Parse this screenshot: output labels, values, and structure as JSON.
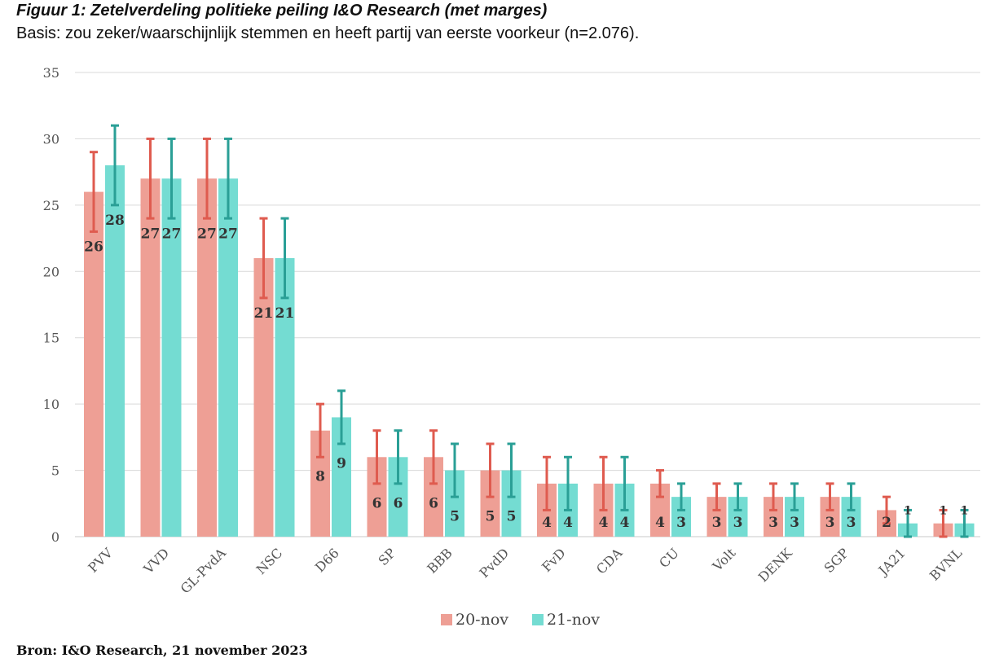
{
  "chart_data": {
    "type": "bar",
    "title": "Figuur 1: Zetelverdeling politieke peiling I&O Research (met marges)",
    "subtitle": "Basis: zou zeker/waarschijnlijk stemmen en heeft partij van eerste voorkeur (n=2.076).",
    "source": "Bron: I&O Research, 21 november 2023",
    "categories": [
      "PVV",
      "VVD",
      "GL-PvdA",
      "NSC",
      "D66",
      "SP",
      "BBB",
      "PvdD",
      "FvD",
      "CDA",
      "CU",
      "Volt",
      "DENK",
      "SGP",
      "JA21",
      "BVNL"
    ],
    "ylim": [
      0,
      35
    ],
    "yticks": [
      0,
      5,
      10,
      15,
      20,
      25,
      30,
      35
    ],
    "grid": true,
    "legend_position": "bottom",
    "series": [
      {
        "name": "20-nov",
        "color": "#ee9f95",
        "errorColor": "#df5b4f",
        "values": [
          26,
          27,
          27,
          21,
          8,
          6,
          6,
          5,
          4,
          4,
          4,
          3,
          3,
          3,
          2,
          1
        ],
        "low": [
          23,
          24,
          24,
          18,
          6,
          4,
          4,
          3,
          2,
          2,
          3,
          2,
          2,
          2,
          1,
          0
        ],
        "high": [
          29,
          30,
          30,
          24,
          10,
          8,
          8,
          7,
          6,
          6,
          5,
          4,
          4,
          4,
          3,
          2
        ]
      },
      {
        "name": "21-nov",
        "color": "#74dcd2",
        "errorColor": "#2a9f96",
        "values": [
          28,
          27,
          27,
          21,
          9,
          6,
          5,
          5,
          4,
          4,
          3,
          3,
          3,
          3,
          1,
          1
        ],
        "low": [
          25,
          24,
          24,
          18,
          7,
          4,
          3,
          3,
          2,
          2,
          2,
          2,
          2,
          2,
          0,
          0
        ],
        "high": [
          31,
          30,
          30,
          24,
          11,
          8,
          7,
          7,
          6,
          6,
          4,
          4,
          4,
          4,
          2,
          2
        ]
      }
    ]
  }
}
